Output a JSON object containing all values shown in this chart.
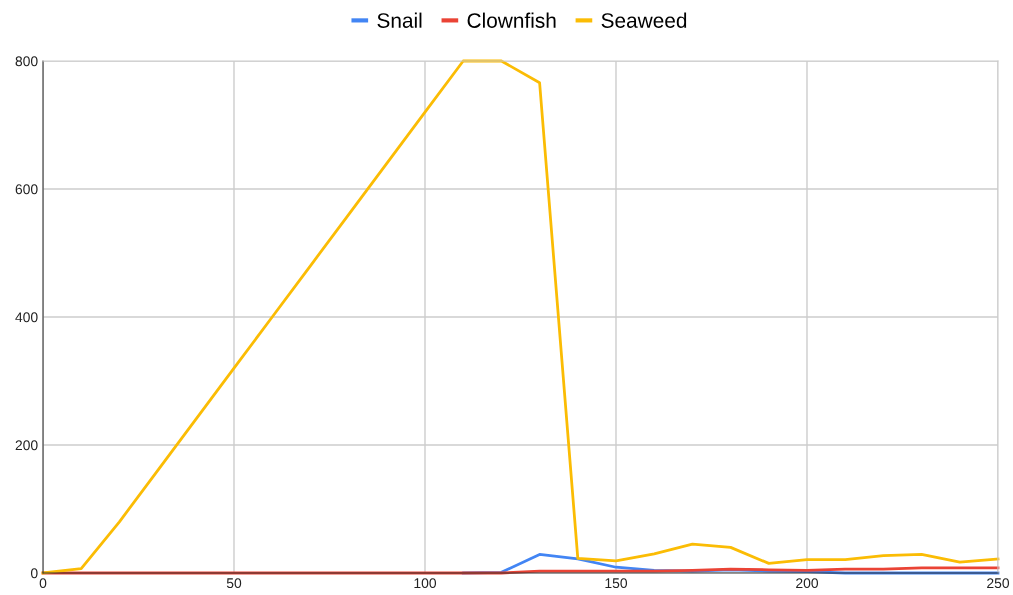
{
  "chart_data": {
    "type": "line",
    "x": [
      0,
      10,
      20,
      30,
      40,
      50,
      60,
      70,
      80,
      90,
      100,
      110,
      120,
      130,
      140,
      150,
      160,
      170,
      180,
      190,
      200,
      210,
      220,
      230,
      240,
      250
    ],
    "series": [
      {
        "name": "Snail",
        "color": "#4285f4",
        "values": [
          null,
          null,
          null,
          null,
          null,
          null,
          null,
          null,
          null,
          null,
          null,
          0,
          1,
          29,
          22,
          9,
          4,
          3,
          5,
          3,
          2,
          0,
          0,
          0,
          0,
          0
        ]
      },
      {
        "name": "Clownfish",
        "color": "#ea4335",
        "values": [
          0,
          0,
          0,
          0,
          0,
          0,
          0,
          0,
          0,
          0,
          0,
          0,
          0,
          3,
          3,
          3,
          3,
          4,
          6,
          5,
          4,
          6,
          6,
          8,
          8,
          8
        ]
      },
      {
        "name": "Seaweed",
        "color": "#fbbc04",
        "values": [
          0,
          7,
          80,
          160,
          240,
          320,
          400,
          480,
          560,
          640,
          720,
          800,
          800,
          766,
          23,
          19,
          30,
          45,
          40,
          15,
          21,
          21,
          27,
          29,
          17,
          22
        ]
      }
    ],
    "xlim": [
      0,
      250
    ],
    "xticks": [
      0,
      50,
      100,
      150,
      200,
      250
    ],
    "ylim": [
      0,
      800
    ],
    "yticks": [
      0,
      200,
      400,
      600,
      800
    ],
    "grid": true,
    "legend": "top",
    "marker": "none",
    "line_style": "solid"
  }
}
